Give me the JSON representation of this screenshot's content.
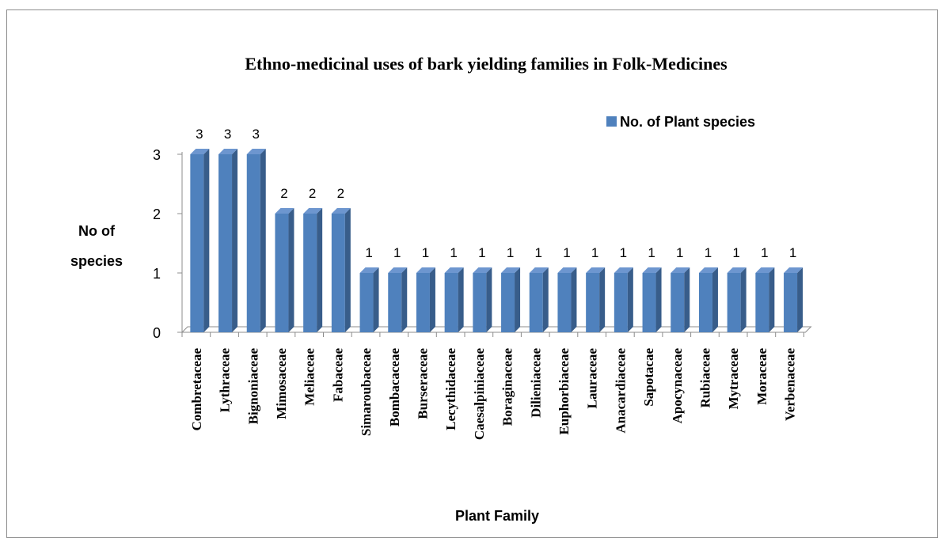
{
  "chart_data": {
    "type": "bar",
    "title": "Ethno-medicinal uses of bark yielding  families in Folk-Medicines",
    "xlabel": "Plant Family",
    "ylabel_lines": [
      "No of",
      "species"
    ],
    "ylim": [
      0,
      3
    ],
    "yticks": [
      0,
      1,
      2,
      3
    ],
    "legend": {
      "position": "top-right"
    },
    "series": [
      {
        "name": "No. of Plant species",
        "color": "#4f81bd",
        "values": [
          3,
          3,
          3,
          2,
          2,
          2,
          1,
          1,
          1,
          1,
          1,
          1,
          1,
          1,
          1,
          1,
          1,
          1,
          1,
          1,
          1,
          1
        ]
      }
    ],
    "categories": [
      "Combretaceae",
      "Lythraceae",
      "Bignoniaceae",
      "Mimosaceae",
      "Meliaceae",
      "Fabaceae",
      "Simaroubaceae",
      "Bombacaceae",
      "Burseraceae",
      "Lecythidaceae",
      "Caesalpiniaceae",
      "Boraginaceae",
      "Dilieniaceae",
      "Euphorbiaceae",
      "Lauraceae",
      "Anacardiaceae",
      "Sapotacae",
      "Apocynaceae",
      "Rubiaceae",
      "Mytraceae",
      "Moraceae",
      "Verbenaceae"
    ],
    "data_labels": true,
    "grid": false
  }
}
